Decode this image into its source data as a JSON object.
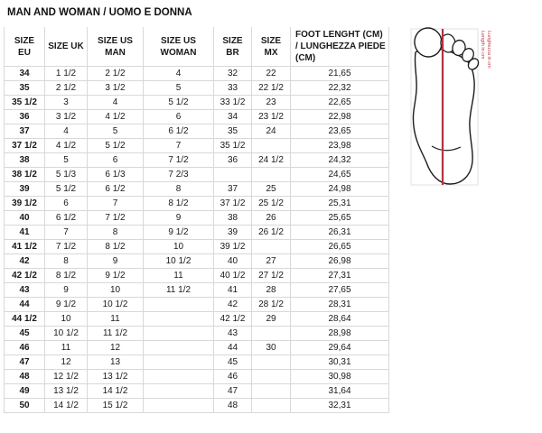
{
  "title": "MAN AND WOMAN / UOMO E DONNA",
  "table": {
    "headers": [
      "SIZE EU",
      "SIZE UK",
      "SIZE US MAN",
      "SIZE US WOMAN",
      "SIZE BR",
      "SIZE MX",
      "FOOT LENGHT (CM) / LUNGHEZZA PIEDE (CM)"
    ],
    "rows": [
      [
        "34",
        "1 1/2",
        "2 1/2",
        "4",
        "32",
        "22",
        "21,65"
      ],
      [
        "35",
        "2 1/2",
        "3 1/2",
        "5",
        "33",
        "22 1/2",
        "22,32"
      ],
      [
        "35 1/2",
        "3",
        "4",
        "5 1/2",
        "33 1/2",
        "23",
        "22,65"
      ],
      [
        "36",
        "3 1/2",
        "4 1/2",
        "6",
        "34",
        "23 1/2",
        "22,98"
      ],
      [
        "37",
        "4",
        "5",
        "6 1/2",
        "35",
        "24",
        "23,65"
      ],
      [
        "37 1/2",
        "4 1/2",
        "5 1/2",
        "7",
        "35 1/2",
        "",
        "23,98"
      ],
      [
        "38",
        "5",
        "6",
        "7 1/2",
        "36",
        "24 1/2",
        "24,32"
      ],
      [
        "38 1/2",
        "5 1/3",
        "6 1/3",
        "7 2/3",
        "",
        "",
        "24,65"
      ],
      [
        "39",
        "5 1/2",
        "6 1/2",
        "8",
        "37",
        "25",
        "24,98"
      ],
      [
        "39 1/2",
        "6",
        "7",
        "8 1/2",
        "37 1/2",
        "25 1/2",
        "25,31"
      ],
      [
        "40",
        "6 1/2",
        "7 1/2",
        "9",
        "38",
        "26",
        "25,65"
      ],
      [
        "41",
        "7",
        "8",
        "9 1/2",
        "39",
        "26 1/2",
        "26,31"
      ],
      [
        "41 1/2",
        "7 1/2",
        "8 1/2",
        "10",
        "39 1/2",
        "",
        "26,65"
      ],
      [
        "42",
        "8",
        "9",
        "10 1/2",
        "40",
        "27",
        "26,98"
      ],
      [
        "42 1/2",
        "8 1/2",
        "9 1/2",
        "11",
        "40 1/2",
        "27 1/2",
        "27,31"
      ],
      [
        "43",
        "9",
        "10",
        "11 1/2",
        "41",
        "28",
        "27,65"
      ],
      [
        "44",
        "9 1/2",
        "10 1/2",
        "",
        "42",
        "28 1/2",
        "28,31"
      ],
      [
        "44 1/2",
        "10",
        "11",
        "",
        "42 1/2",
        "29",
        "28,64"
      ],
      [
        "45",
        "10 1/2",
        "11 1/2",
        "",
        "43",
        "",
        "28,98"
      ],
      [
        "46",
        "11",
        "12",
        "",
        "44",
        "30",
        "29,64"
      ],
      [
        "47",
        "12",
        "13",
        "",
        "45",
        "",
        "30,31"
      ],
      [
        "48",
        "12 1/2",
        "13 1/2",
        "",
        "46",
        "",
        "30,98"
      ],
      [
        "49",
        "13 1/2",
        "14 1/2",
        "",
        "47",
        "",
        "31,64"
      ],
      [
        "50",
        "14 1/2",
        "15 1/2",
        "",
        "48",
        "",
        "32,31"
      ]
    ]
  },
  "foot_diagram": {
    "label_line1": "Length in cm",
    "label_line2": "Lunghezza in cm"
  },
  "colors": {
    "border": "#d8d8d8",
    "measure_line": "#b5323c",
    "label_red": "#c23b47",
    "outline": "#1b1b1b"
  }
}
